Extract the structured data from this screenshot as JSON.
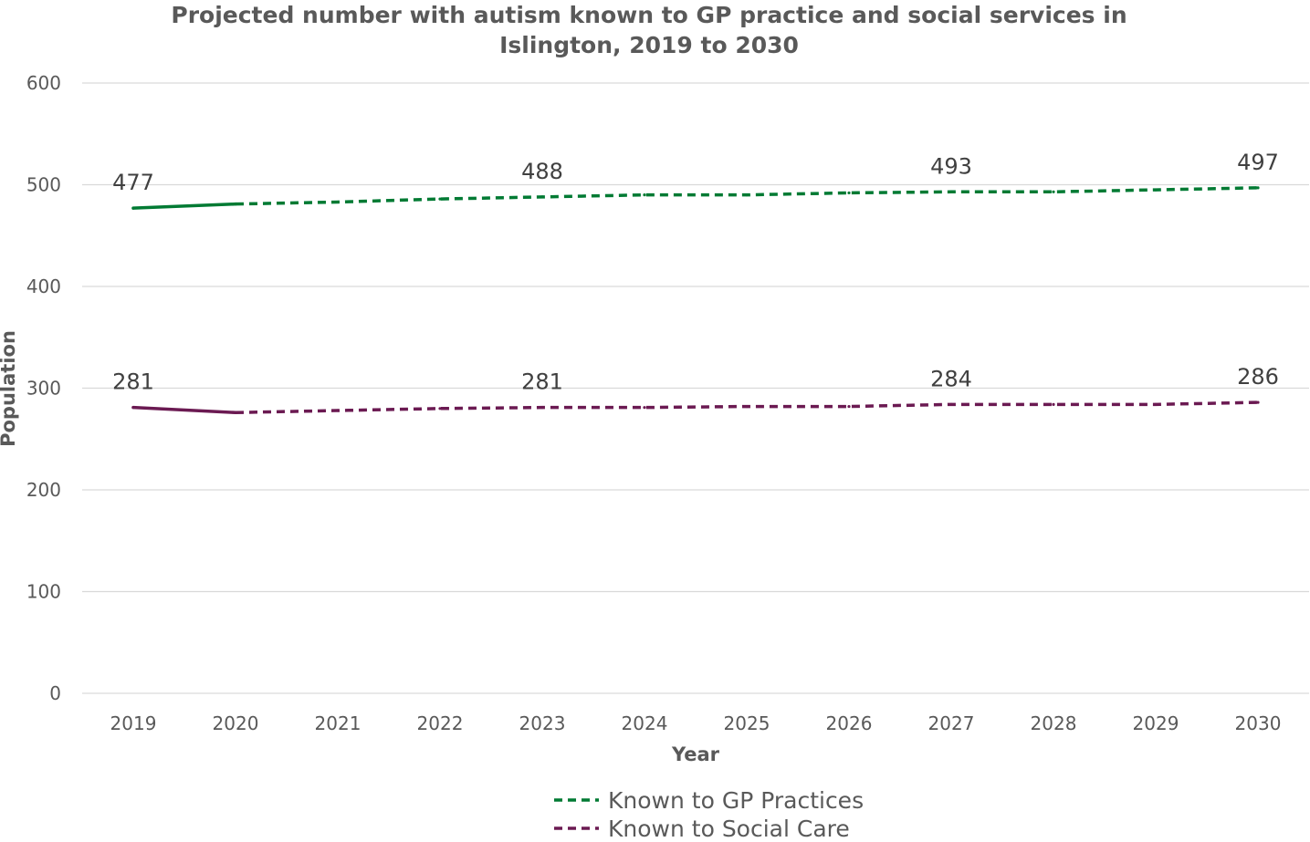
{
  "chart_data": {
    "type": "line",
    "title_line1": "Projected number with autism known to GP practice and social services  in",
    "title_line2": "Islington, 2019 to 2030",
    "xlabel": "Year",
    "ylabel": "Population",
    "ylim": [
      0,
      600
    ],
    "yticks": [
      "0",
      "100",
      "200",
      "300",
      "400",
      "500",
      "600"
    ],
    "categories": [
      "2019",
      "2020",
      "2021",
      "2022",
      "2023",
      "2024",
      "2025",
      "2026",
      "2027",
      "2028",
      "2029",
      "2030"
    ],
    "grid": true,
    "legend_position": "bottom",
    "series": [
      {
        "name": "Known to GP Practices",
        "color": "#007a33",
        "style": "solid for 2019-2020, dashed projection from 2020",
        "values": [
          477,
          481,
          483,
          486,
          488,
          490,
          490,
          492,
          493,
          493,
          495,
          497
        ],
        "labels": [
          {
            "index": 0,
            "text": "477"
          },
          {
            "index": 4,
            "text": "488"
          },
          {
            "index": 8,
            "text": "493"
          },
          {
            "index": 11,
            "text": "497"
          }
        ]
      },
      {
        "name": "Known to Social Care",
        "color": "#6b1a52",
        "style": "solid for 2019-2020, dashed projection from 2020",
        "values": [
          281,
          276,
          278,
          280,
          281,
          281,
          282,
          282,
          284,
          284,
          284,
          286
        ],
        "labels": [
          {
            "index": 0,
            "text": "281"
          },
          {
            "index": 4,
            "text": "281"
          },
          {
            "index": 8,
            "text": "284"
          },
          {
            "index": 11,
            "text": "286"
          }
        ]
      }
    ]
  }
}
